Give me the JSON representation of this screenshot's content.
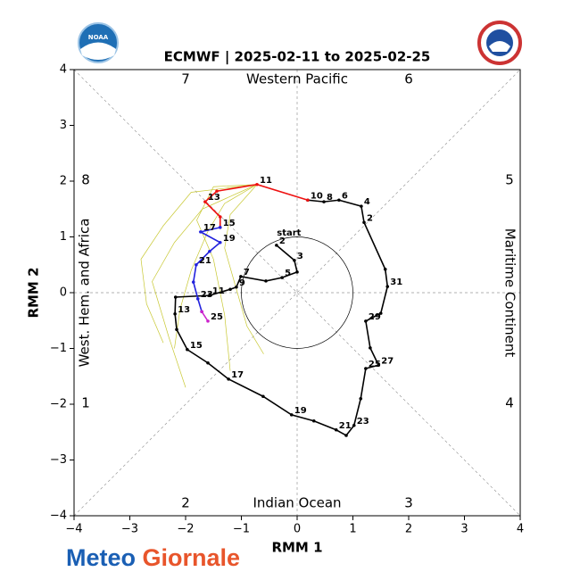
{
  "chart_data": {
    "type": "line",
    "title": "ECMWF | 2025-02-11 to 2025-02-25",
    "xlabel": "RMM 1",
    "ylabel": "RMM 2",
    "xlim": [
      -4,
      4
    ],
    "ylim": [
      -4,
      4
    ],
    "xticks": [
      {
        "value": -4,
        "label": "−4"
      },
      {
        "value": -3,
        "label": "−3"
      },
      {
        "value": -2,
        "label": "−2"
      },
      {
        "value": -1,
        "label": "−1"
      },
      0,
      1,
      2,
      3,
      4
    ],
    "yticks": [
      {
        "value": -4,
        "label": "−4"
      },
      {
        "value": -3,
        "label": "−3"
      },
      {
        "value": -2,
        "label": "−2"
      },
      {
        "value": -1,
        "label": "−1"
      },
      0,
      1,
      2,
      3,
      4
    ],
    "phases": [
      "1",
      "2",
      "3",
      "4",
      "5",
      "6",
      "7",
      "8"
    ],
    "regions": [
      "Western Pacific",
      "Maritime Continent",
      "Indian Ocean",
      "West. Hem. and Africa"
    ],
    "start_label": "start",
    "series": [
      {
        "color": "#c8c832",
        "x": [
          -0.72,
          -1.3,
          -1.6,
          -1.9,
          -2.1,
          -2.2
        ],
        "y": [
          1.94,
          1.6,
          1.1,
          0.4,
          -0.3,
          -1.0
        ],
        "point_labels": [
          null,
          null,
          null,
          null,
          null,
          null
        ]
      },
      {
        "color": "#c8c832",
        "x": [
          -0.72,
          -1.5,
          -1.8,
          -1.5,
          -1.3,
          -1.2
        ],
        "y": [
          1.94,
          1.9,
          1.3,
          0.6,
          -0.4,
          -1.4
        ],
        "point_labels": [
          null,
          null,
          null,
          null,
          null,
          null
        ]
      },
      {
        "color": "#c8c832",
        "x": [
          -0.72,
          -1.7,
          -2.2,
          -2.6,
          -2.3,
          -2.0
        ],
        "y": [
          1.94,
          1.5,
          0.9,
          0.2,
          -0.8,
          -1.7
        ],
        "point_labels": [
          null,
          null,
          null,
          null,
          null,
          null
        ]
      },
      {
        "color": "#c8c832",
        "x": [
          -0.72,
          -1.2,
          -1.3,
          -1.1,
          -0.9,
          -0.6
        ],
        "y": [
          1.94,
          1.4,
          0.8,
          0.1,
          -0.6,
          -1.1
        ],
        "point_labels": [
          null,
          null,
          null,
          null,
          null,
          null
        ]
      },
      {
        "color": "#c8c832",
        "x": [
          -0.72,
          -1.9,
          -2.4,
          -2.8,
          -2.7,
          -2.4
        ],
        "y": [
          1.94,
          1.8,
          1.2,
          0.6,
          -0.2,
          -0.9
        ],
        "point_labels": [
          null,
          null,
          null,
          null,
          null,
          null
        ]
      },
      {
        "color": "#000000",
        "x": [
          -0.37,
          -0.05,
          0,
          -0.27,
          -0.56,
          -1.01,
          -1.09,
          -1.2,
          -1.57,
          -2.18,
          -2.19,
          -2.16,
          -1.97,
          -1.6,
          -1.23,
          -0.61,
          -0.1,
          0.3,
          0.7,
          0.88,
          1.02,
          1.14,
          1.23,
          1.46,
          1.31,
          1.23,
          1.5,
          1.62,
          1.58,
          1.2,
          1.15,
          0.75,
          0.48,
          0.19
        ],
        "y": [
          0.85,
          0.58,
          0.37,
          0.27,
          0.21,
          0.29,
          0.1,
          0.06,
          -0.05,
          -0.08,
          -0.38,
          -0.66,
          -1.02,
          -1.26,
          -1.55,
          -1.86,
          -2.19,
          -2.3,
          -2.46,
          -2.56,
          -2.38,
          -1.9,
          -1.36,
          -1.3,
          -0.99,
          -0.51,
          -0.37,
          0.11,
          0.42,
          1.26,
          1.55,
          1.66,
          1.63,
          1.66
        ],
        "point_labels": [
          "2",
          "3",
          null,
          "5",
          null,
          "7",
          "9",
          null,
          "11",
          null,
          "13",
          null,
          "15",
          null,
          "17",
          null,
          "19",
          null,
          "21",
          null,
          "23",
          null,
          "25",
          "27",
          null,
          "29",
          null,
          "31",
          null,
          "2",
          "4",
          "6",
          "8",
          "10"
        ]
      },
      {
        "color": "#ee1111",
        "x": [
          0.19,
          -0.72,
          -1.44,
          -1.65,
          -1.38,
          -1.38
        ],
        "y": [
          1.66,
          1.94,
          1.82,
          1.63,
          1.36,
          1.17
        ],
        "point_labels": [
          null,
          "11",
          null,
          "13",
          null,
          "15"
        ]
      },
      {
        "color": "#2222dd",
        "x": [
          -1.38,
          -1.73,
          -1.38,
          -1.57,
          -1.81,
          -1.86,
          -1.78,
          -1.71
        ],
        "y": [
          1.17,
          1.09,
          0.9,
          0.74,
          0.5,
          0.19,
          -0.11,
          -0.34
        ],
        "point_labels": [
          null,
          "17",
          "19",
          null,
          "21",
          null,
          "23",
          null
        ]
      },
      {
        "color": "#cc22cc",
        "x": [
          -1.71,
          -1.6
        ],
        "y": [
          -0.34,
          -0.51
        ],
        "point_labels": [
          null,
          "25"
        ]
      }
    ]
  },
  "logos": {
    "noaa": "NOAA",
    "brand": [
      "Meteo",
      "Giornale"
    ]
  }
}
